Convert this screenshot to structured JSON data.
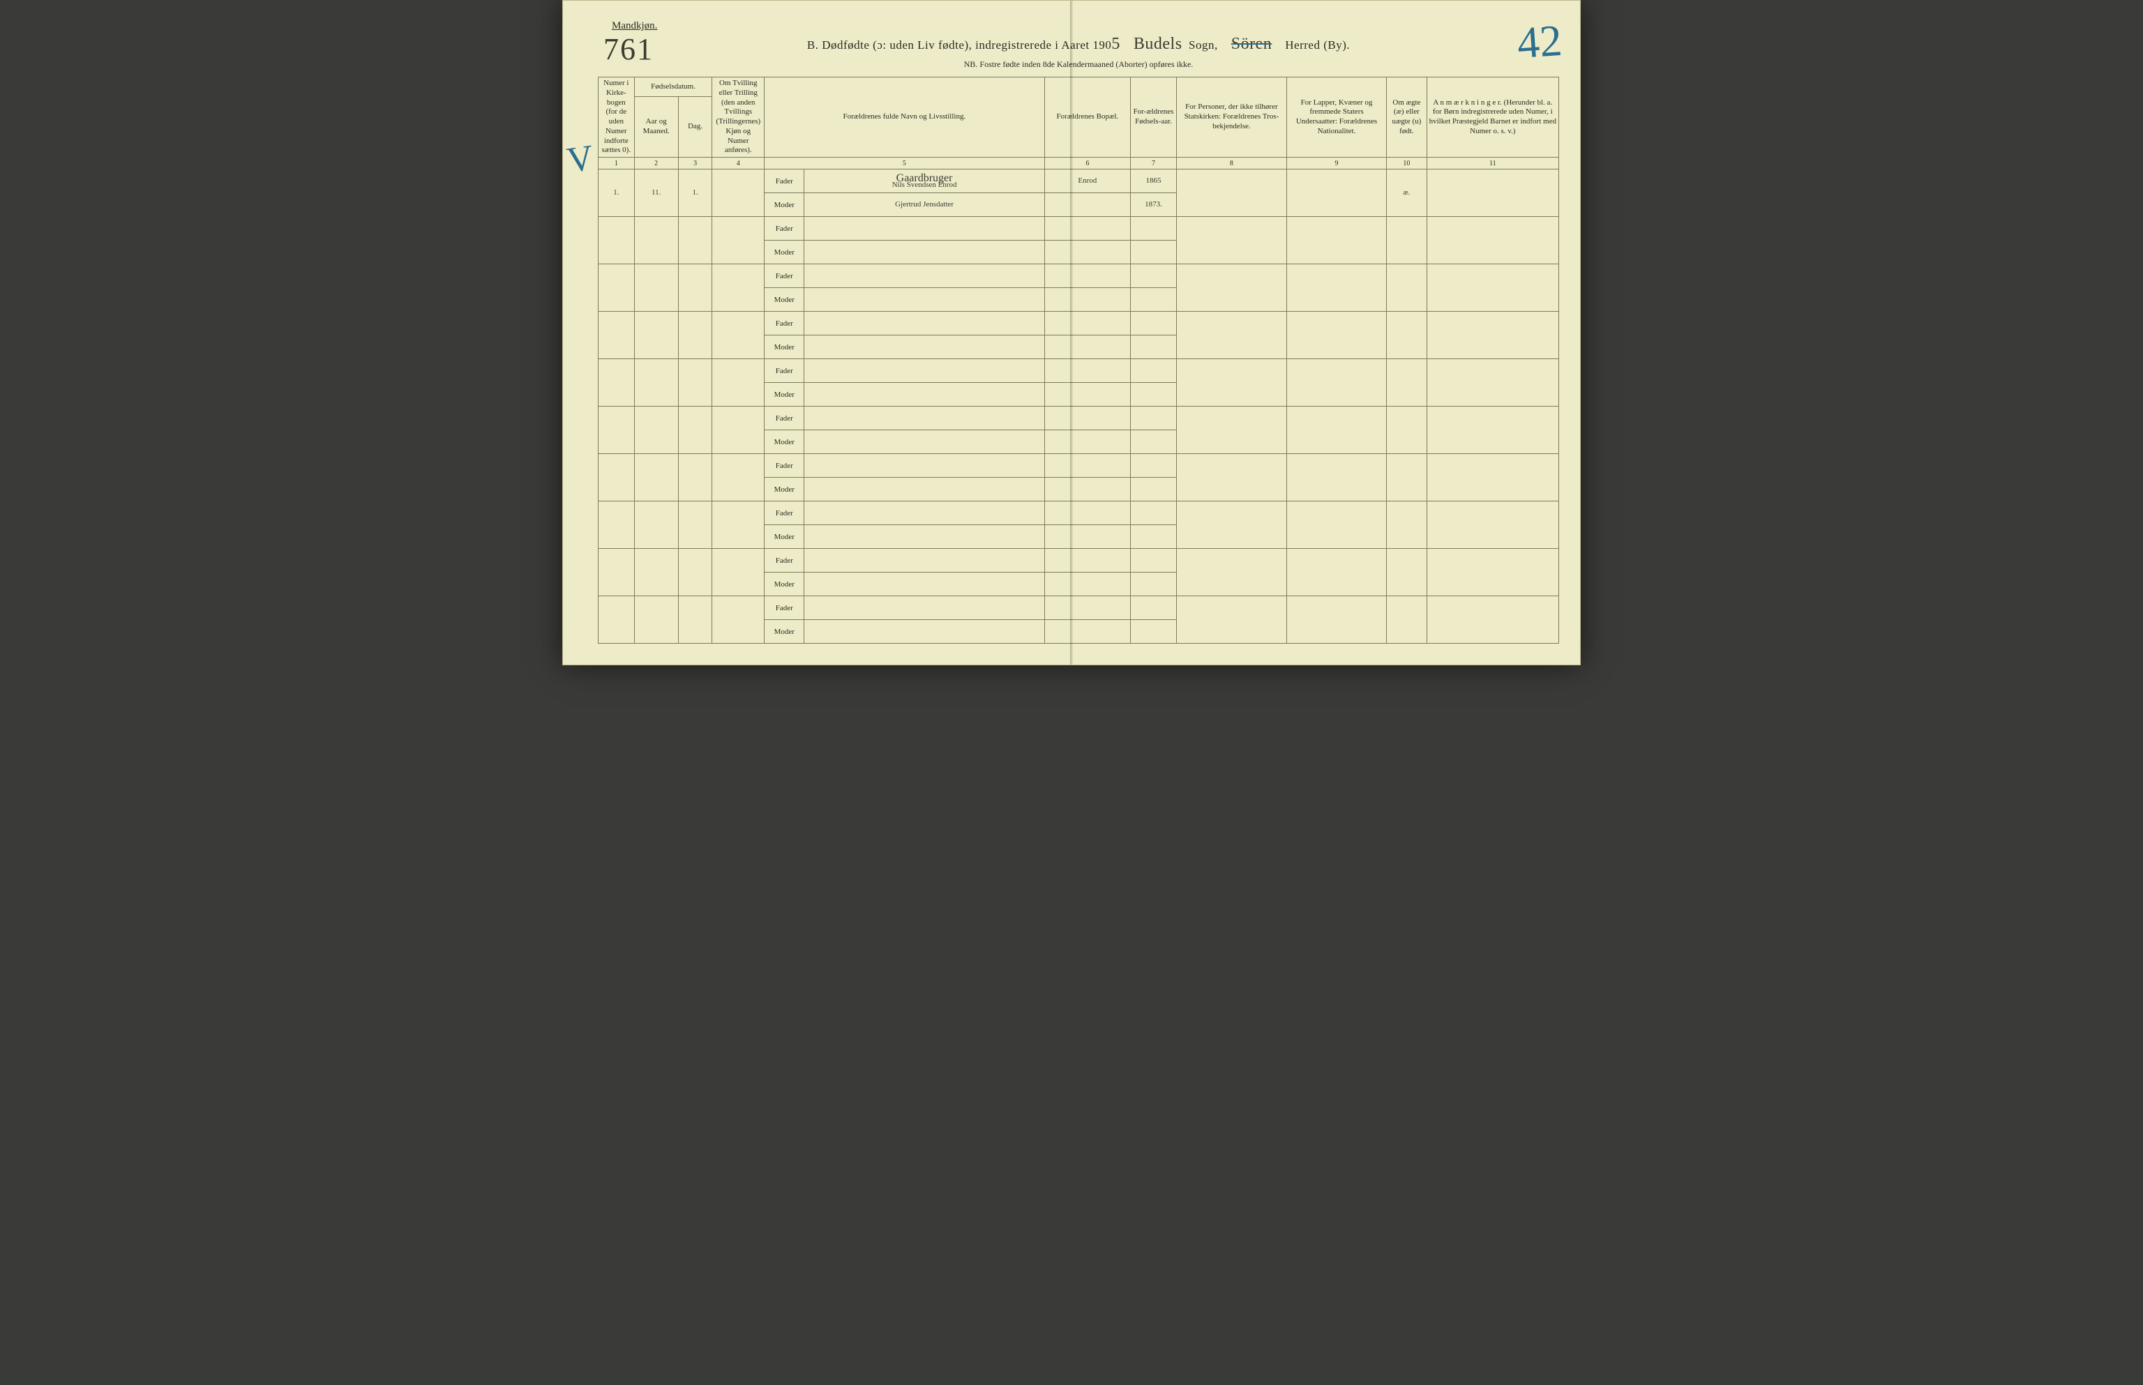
{
  "header": {
    "gender": "Mandkjøn.",
    "page_no_left": "761",
    "page_no_right": "42",
    "title_prefix": "B.  Dødfødte (ɔ: uden Liv fødte), indregistrerede i Aaret 190",
    "year_digit": "5",
    "sogn_fill": "Budels",
    "sogn_suffix": "Sogn,",
    "herred_fill": "Sören",
    "herred_suffix": "Herred (By).",
    "nb": "NB.  Fostre fødte inden 8de Kalendermaaned (Aborter) opføres ikke."
  },
  "margin_check": "V",
  "columns": {
    "c1": "Numer i Kirke-bogen (for de uden Numer indforte sættes 0).",
    "c2a": "Fødselsdatum.",
    "c2_sub1": "Aar og Maaned.",
    "c2_sub2": "Dag.",
    "c4": "Om Tvilling eller Trilling (den anden Tvillings (Trillingernes) Kjøn og Numer anføres).",
    "c5": "Forældrenes fulde Navn og Livsstilling.",
    "c6": "Forældrenes Bopæl.",
    "c7": "For-ældrenes Fødsels-aar.",
    "c8": "For Personer, der ikke tilhører Statskirken: Forældrenes Tros-bekjendelse.",
    "c9": "For Lapper, Kvæner og fremmede Staters Undersaatter: Forældrenes Nationalitet.",
    "c10": "Om ægte (æ) eller uægte (u) født.",
    "c11": "A n m æ r k n i n g e r. (Herunder bl. a. for Børn indregistrerede uden Numer, i hvilket Præstegjeld Barnet er indfort med Numer o. s. v.)"
  },
  "colnums": [
    "1",
    "2",
    "3",
    "4",
    "5",
    "6",
    "7",
    "8",
    "9",
    "10",
    "11"
  ],
  "labels": {
    "fader": "Fader",
    "moder": "Moder"
  },
  "entry": {
    "num": "1.",
    "month": "11.",
    "day": "1.",
    "fader_line1": "Gaardbruger",
    "fader_line2": "Nils Svendsen Enrod",
    "moder": "Gjertrud Jensdatter",
    "bopel": "Enrod",
    "fader_year": "1865",
    "moder_year": "1873.",
    "aegte": "æ."
  },
  "blank_rows": 9
}
